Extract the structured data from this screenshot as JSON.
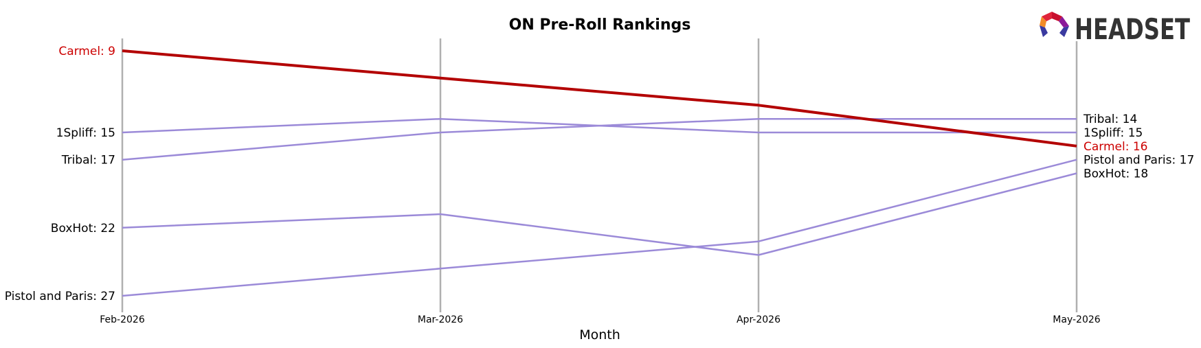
{
  "chart_data": {
    "type": "line",
    "title": "ON Pre-Roll Rankings",
    "xlabel": "Month",
    "ylabel": "",
    "categories": [
      "Feb-2026",
      "Mar-2026",
      "Apr-2026",
      "May-2026"
    ],
    "y_inverted": true,
    "ylim": [
      9,
      27
    ],
    "grid": "vertical lines at each month",
    "highlight_color": "#b30000",
    "series_color": "#9b8ad8",
    "label_highlight_color": "#cc0000",
    "series": [
      {
        "name": "Carmel",
        "values": [
          9,
          11,
          13,
          16
        ],
        "highlight": true,
        "start_label": "Carmel: 9",
        "end_label": "Carmel: 16"
      },
      {
        "name": "1Spliff",
        "values": [
          15,
          14,
          15,
          15
        ],
        "highlight": false,
        "start_label": "1Spliff: 15",
        "end_label": "1Spliff: 15"
      },
      {
        "name": "Tribal",
        "values": [
          17,
          15,
          14,
          14
        ],
        "highlight": false,
        "start_label": "Tribal: 17",
        "end_label": "Tribal: 14"
      },
      {
        "name": "BoxHot",
        "values": [
          22,
          21,
          24,
          18
        ],
        "highlight": false,
        "start_label": "BoxHot: 22",
        "end_label": "BoxHot: 18"
      },
      {
        "name": "Pistol and Paris",
        "values": [
          27,
          25,
          23,
          17
        ],
        "highlight": false,
        "start_label": "Pistol and Paris: 27",
        "end_label": "Pistol and Paris: 17"
      }
    ]
  },
  "logo": {
    "text": "HEADSET",
    "icon": "headset-hexagon-logo"
  }
}
